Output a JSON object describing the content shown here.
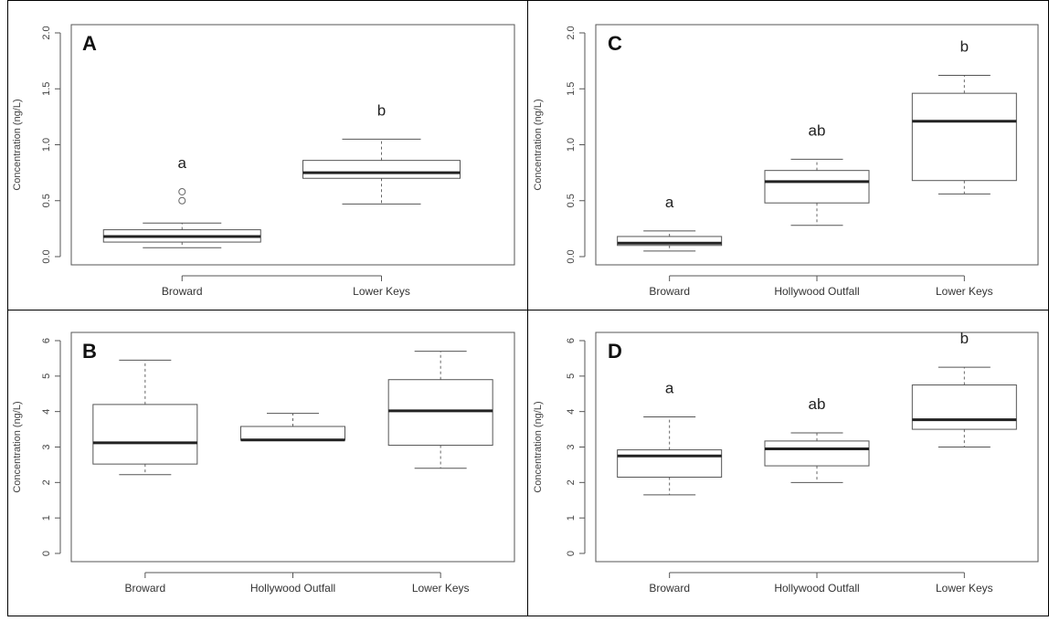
{
  "chart_data": [
    {
      "type": "box",
      "panel_label": "A",
      "ylabel": "Concentration (ng/L)",
      "ylim": [
        0,
        2
      ],
      "yticks": [
        "0.0",
        "0.5",
        "1.0",
        "1.5",
        "2.0"
      ],
      "categories": [
        "Broward",
        "Lower Keys"
      ],
      "boxes": [
        {
          "category": "Broward",
          "whisker_low": 0.08,
          "q1": 0.13,
          "median": 0.18,
          "q3": 0.24,
          "whisker_high": 0.3,
          "outliers": [
            0.5,
            0.58
          ],
          "letter": "a"
        },
        {
          "category": "Lower Keys",
          "whisker_low": 0.47,
          "q1": 0.7,
          "median": 0.75,
          "q3": 0.86,
          "whisker_high": 1.05,
          "outliers": [],
          "letter": "b"
        }
      ]
    },
    {
      "type": "box",
      "panel_label": "C",
      "ylabel": "Concentration (ng/L)",
      "ylim": [
        0,
        2
      ],
      "yticks": [
        "0.0",
        "0.5",
        "1.0",
        "1.5",
        "2.0"
      ],
      "categories": [
        "Broward",
        "Hollywood Outfall",
        "Lower Keys"
      ],
      "boxes": [
        {
          "category": "Broward",
          "whisker_low": 0.05,
          "q1": 0.1,
          "median": 0.12,
          "q3": 0.18,
          "whisker_high": 0.23,
          "outliers": [],
          "letter": "a"
        },
        {
          "category": "Hollywood Outfall",
          "whisker_low": 0.28,
          "q1": 0.48,
          "median": 0.67,
          "q3": 0.77,
          "whisker_high": 0.87,
          "outliers": [],
          "letter": "ab"
        },
        {
          "category": "Lower Keys",
          "whisker_low": 0.56,
          "q1": 0.68,
          "median": 1.21,
          "q3": 1.46,
          "whisker_high": 1.62,
          "outliers": [],
          "letter": "b"
        }
      ]
    },
    {
      "type": "box",
      "panel_label": "B",
      "ylabel": "Concentration (ng/L)",
      "ylim": [
        0,
        6
      ],
      "yticks": [
        "0",
        "1",
        "2",
        "3",
        "4",
        "5",
        "6"
      ],
      "categories": [
        "Broward",
        "Hollywood Outfall",
        "Lower Keys"
      ],
      "boxes": [
        {
          "category": "Broward",
          "whisker_low": 2.22,
          "q1": 2.52,
          "median": 3.12,
          "q3": 4.2,
          "whisker_high": 5.45,
          "outliers": [],
          "letter": ""
        },
        {
          "category": "Hollywood Outfall",
          "whisker_low": 3.2,
          "q1": 3.2,
          "median": 3.2,
          "q3": 3.58,
          "whisker_high": 3.95,
          "outliers": [],
          "letter": ""
        },
        {
          "category": "Lower Keys",
          "whisker_low": 2.4,
          "q1": 3.05,
          "median": 4.02,
          "q3": 4.9,
          "whisker_high": 5.7,
          "outliers": [],
          "letter": ""
        }
      ]
    },
    {
      "type": "box",
      "panel_label": "D",
      "ylabel": "Concentration (ng/L)",
      "ylim": [
        0,
        6
      ],
      "yticks": [
        "0",
        "1",
        "2",
        "3",
        "4",
        "5",
        "6"
      ],
      "categories": [
        "Broward",
        "Hollywood Outfall",
        "Lower Keys"
      ],
      "boxes": [
        {
          "category": "Broward",
          "whisker_low": 1.65,
          "q1": 2.15,
          "median": 2.75,
          "q3": 2.92,
          "whisker_high": 3.85,
          "outliers": [],
          "letter": "a"
        },
        {
          "category": "Hollywood Outfall",
          "whisker_low": 2.0,
          "q1": 2.47,
          "median": 2.95,
          "q3": 3.17,
          "whisker_high": 3.4,
          "outliers": [],
          "letter": "ab"
        },
        {
          "category": "Lower Keys",
          "whisker_low": 3.0,
          "q1": 3.5,
          "median": 3.77,
          "q3": 4.75,
          "whisker_high": 5.25,
          "outliers": [],
          "letter": "b"
        }
      ]
    }
  ]
}
